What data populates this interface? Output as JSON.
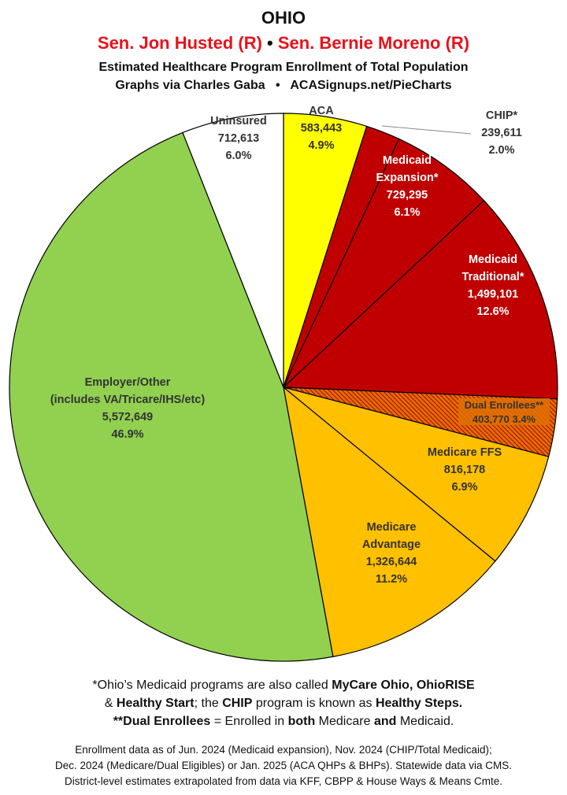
{
  "header": {
    "title": "OHIO",
    "senator1": "Sen. Jon Husted (R)",
    "separator": "•",
    "senator2": "Sen. Bernie Moreno (R)",
    "subtitle1": "Estimated Healthcare Program Enrollment of Total Population",
    "subtitle2_part1": "Graphs via Charles Gaba",
    "subtitle2_sep": "•",
    "subtitle2_part2": "ACASignups.net/PieCharts"
  },
  "chart_data": {
    "type": "pie",
    "start_angle_deg": 0,
    "direction": "clockwise",
    "slices": [
      {
        "key": "aca",
        "label_lines": [
          "ACA"
        ],
        "value": 583443,
        "value_text": "583,443",
        "percent": 4.9,
        "percent_text": "4.9%",
        "color": "#ffff00",
        "text_color": "#333333"
      },
      {
        "key": "chip",
        "label_lines": [
          "CHIP*"
        ],
        "value": 239611,
        "value_text": "239,611",
        "percent": 2.0,
        "percent_text": "2.0%",
        "color": "#c00000",
        "text_color": "#333333",
        "callout": true
      },
      {
        "key": "medicaid_expansion",
        "label_lines": [
          "Medicaid",
          "Expansion*"
        ],
        "value": 729295,
        "value_text": "729,295",
        "percent": 6.1,
        "percent_text": "6.1%",
        "color": "#c00000",
        "text_color": "#ffffff"
      },
      {
        "key": "medicaid_traditional",
        "label_lines": [
          "Medicaid",
          "Traditional*"
        ],
        "value": 1499101,
        "value_text": "1,499,101",
        "percent": 12.6,
        "percent_text": "12.6%",
        "color": "#c00000",
        "text_color": "#ffffff"
      },
      {
        "key": "dual_enrollees",
        "label_lines": [
          "Dual Enrollees**"
        ],
        "value": 403770,
        "value_text": "403,770",
        "percent": 3.4,
        "percent_text": "3.4%",
        "color": "#e07000",
        "hatch": true,
        "text_color": "#333333"
      },
      {
        "key": "medicare_ffs",
        "label_lines": [
          "Medicare FFS"
        ],
        "value": 816178,
        "value_text": "816,178",
        "percent": 6.9,
        "percent_text": "6.9%",
        "color": "#ffc000",
        "text_color": "#333333"
      },
      {
        "key": "medicare_advantage",
        "label_lines": [
          "Medicare",
          "Advantage"
        ],
        "value": 1326644,
        "value_text": "1,326,644",
        "percent": 11.2,
        "percent_text": "11.2%",
        "color": "#ffc000",
        "text_color": "#333333"
      },
      {
        "key": "employer_other",
        "label_lines": [
          "Employer/Other",
          "(includes VA/Tricare/IHS/etc)"
        ],
        "value": 5572649,
        "value_text": "5,572,649",
        "percent": 46.9,
        "percent_text": "46.9%",
        "color": "#92d050",
        "text_color": "#333333"
      },
      {
        "key": "uninsured",
        "label_lines": [
          "Uninsured"
        ],
        "value": 712613,
        "value_text": "712,613",
        "percent": 6.0,
        "percent_text": "6.0%",
        "color": "#ffffff",
        "text_color": "#333333"
      }
    ]
  },
  "notes": {
    "line1_a": "*Ohio’s Medicaid programs are also called ",
    "line1_b": "MyCare Ohio, OhioRISE",
    "line2_a": "& ",
    "line2_b": "Healthy Start",
    "line2_c": "; the ",
    "line2_d": "CHIP",
    "line2_e": " program is known as ",
    "line2_f": "Healthy Steps.",
    "line3_a": "**Dual Enrollees",
    "line3_b": " = Enrolled in ",
    "line3_c": "both",
    "line3_d": " Medicare ",
    "line3_e": "and",
    "line3_f": " Medicaid."
  },
  "sources": {
    "line1": "Enrollment data as of Jun. 2024 (Medicaid expansion), Nov. 2024 (CHIP/Total Medicaid);",
    "line2": "Dec. 2024 (Medicare/Dual Eligibles) or Jan. 2025 (ACA QHPs & BHPs). Statewide data via CMS.",
    "line3": "District-level estimates extrapolated from data via KFF, CBPP & House Ways & Means Cmte."
  }
}
